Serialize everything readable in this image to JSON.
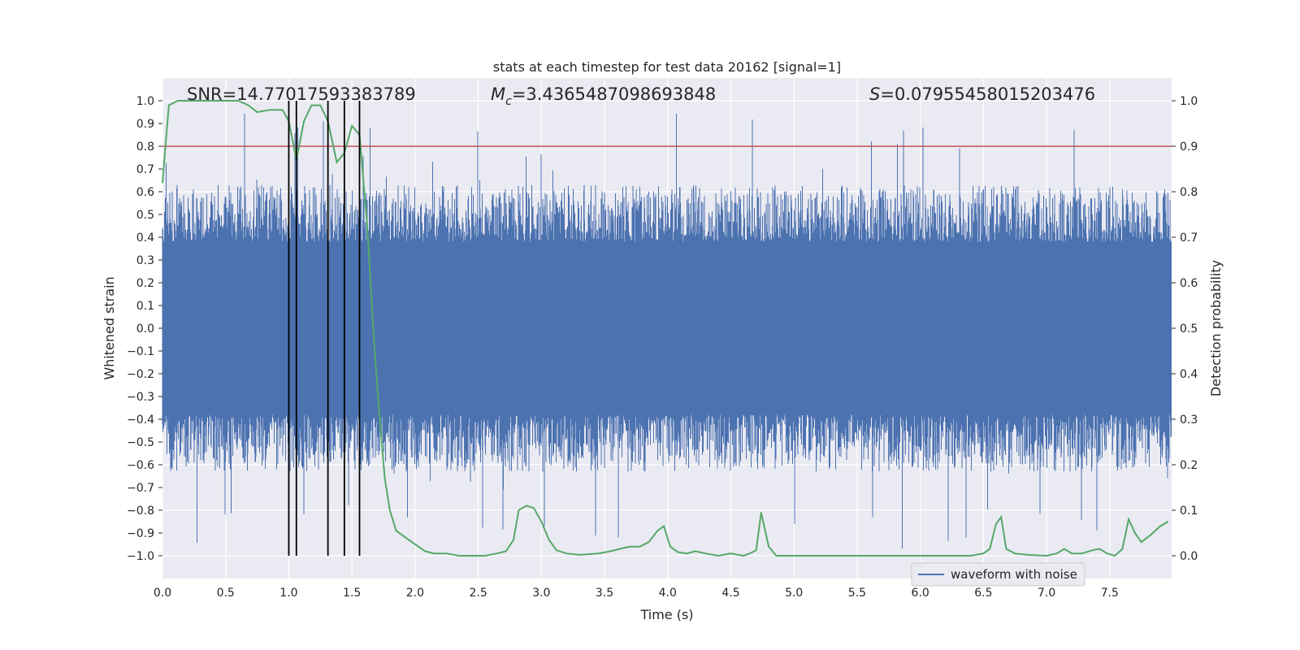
{
  "chart_data": {
    "type": "line",
    "title": "stats at each timestep for test data 20162 [signal=1]",
    "xlabel": "Time (s)",
    "ylabel": "Whitened strain",
    "ylabel_right": "Detection probability",
    "xlim": [
      0.0,
      7.99
    ],
    "ylim": [
      -1.1,
      1.1
    ],
    "ylim_right": [
      -0.05,
      1.05
    ],
    "x_ticks": [
      0.0,
      0.5,
      1.0,
      1.5,
      2.0,
      2.5,
      3.0,
      3.5,
      4.0,
      4.5,
      5.0,
      5.5,
      6.0,
      6.5,
      7.0,
      7.5
    ],
    "x_tick_labels": [
      "0.0",
      "0.5",
      "1.0",
      "1.5",
      "2.0",
      "2.5",
      "3.0",
      "3.5",
      "4.0",
      "4.5",
      "5.0",
      "5.5",
      "6.0",
      "6.5",
      "7.0",
      "7.5"
    ],
    "y_ticks": [
      1.0,
      0.9,
      0.8,
      0.7,
      0.6,
      0.5,
      0.4,
      0.3,
      0.2,
      0.1,
      0.0,
      -0.1,
      -0.2,
      -0.3,
      -0.4,
      -0.5,
      -0.6,
      -0.7,
      -0.8,
      -0.9,
      -1.0
    ],
    "y_tick_labels": [
      "1.0",
      "0.9",
      "0.8",
      "0.7",
      "0.6",
      "0.5",
      "0.4",
      "0.3",
      "0.2",
      "0.1",
      "0.0",
      "−0.1",
      "−0.2",
      "−0.3",
      "−0.4",
      "−0.5",
      "−0.6",
      "−0.7",
      "−0.8",
      "−0.9",
      "−1.0"
    ],
    "y_right_ticks": [
      1.0,
      0.9,
      0.8,
      0.7,
      0.6,
      0.5,
      0.4,
      0.3,
      0.2,
      0.1,
      0.0
    ],
    "y_right_tick_labels": [
      "1.0",
      "0.9",
      "0.8",
      "0.7",
      "0.6",
      "0.5",
      "0.4",
      "0.3",
      "0.2",
      "0.1",
      "0.0"
    ],
    "stats": {
      "snr": "SNR=14.77017593383789",
      "mc_symbol": "M",
      "mc_sub": "c",
      "mc_value": "=3.4365487098693848",
      "s_symbol": "S",
      "s_value": "=0.07955458015203476"
    },
    "threshold_right": 0.9,
    "vertical_lines_x": [
      1.0,
      1.06,
      1.31,
      1.44,
      1.56
    ],
    "vertical_lines_range": [
      -1.0,
      1.0
    ],
    "legend": [
      {
        "label": "waveform with noise",
        "color": "#4c72b0"
      }
    ],
    "legend_position": "lower-right",
    "waveform": {
      "name": "waveform with noise",
      "color": "#4c72b0",
      "core_band": 0.38,
      "typical_peak": 0.55,
      "max_peak": 0.98
    },
    "detection_probability": {
      "name": "detection probability",
      "color": "#55a868",
      "x": [
        0.0,
        0.05,
        0.12,
        0.2,
        0.3,
        0.4,
        0.5,
        0.6,
        0.68,
        0.75,
        0.85,
        0.95,
        1.0,
        1.06,
        1.12,
        1.18,
        1.25,
        1.31,
        1.38,
        1.44,
        1.5,
        1.56,
        1.62,
        1.68,
        1.72,
        1.76,
        1.8,
        1.85,
        1.9,
        1.95,
        2.0,
        2.08,
        2.15,
        2.25,
        2.35,
        2.45,
        2.55,
        2.65,
        2.72,
        2.78,
        2.82,
        2.88,
        2.94,
        3.0,
        3.06,
        3.12,
        3.2,
        3.3,
        3.45,
        3.55,
        3.62,
        3.7,
        3.78,
        3.85,
        3.92,
        3.97,
        4.02,
        4.08,
        4.15,
        4.22,
        4.3,
        4.4,
        4.5,
        4.6,
        4.65,
        4.7,
        4.74,
        4.8,
        4.86,
        4.95,
        5.2,
        5.5,
        5.8,
        6.0,
        6.2,
        6.4,
        6.5,
        6.55,
        6.6,
        6.64,
        6.68,
        6.75,
        6.85,
        7.0,
        7.08,
        7.14,
        7.2,
        7.28,
        7.36,
        7.42,
        7.48,
        7.54,
        7.6,
        7.65,
        7.7,
        7.75,
        7.82,
        7.9,
        7.96
      ],
      "values": [
        0.82,
        0.99,
        1.0,
        1.0,
        1.0,
        1.0,
        1.0,
        1.0,
        0.99,
        0.975,
        0.98,
        0.98,
        0.955,
        0.87,
        0.955,
        0.99,
        0.99,
        0.955,
        0.865,
        0.885,
        0.945,
        0.925,
        0.73,
        0.45,
        0.3,
        0.17,
        0.1,
        0.055,
        0.045,
        0.035,
        0.025,
        0.01,
        0.005,
        0.005,
        0.0,
        0.0,
        0.0,
        0.005,
        0.01,
        0.035,
        0.1,
        0.11,
        0.105,
        0.075,
        0.035,
        0.012,
        0.005,
        0.002,
        0.005,
        0.01,
        0.015,
        0.02,
        0.02,
        0.03,
        0.055,
        0.065,
        0.02,
        0.008,
        0.005,
        0.01,
        0.005,
        0.0,
        0.005,
        0.0,
        0.005,
        0.012,
        0.095,
        0.02,
        0.0,
        0.0,
        0.0,
        0.0,
        0.0,
        0.0,
        0.0,
        0.0,
        0.005,
        0.015,
        0.07,
        0.085,
        0.015,
        0.005,
        0.002,
        0.0,
        0.005,
        0.015,
        0.005,
        0.005,
        0.012,
        0.015,
        0.005,
        0.0,
        0.015,
        0.08,
        0.05,
        0.03,
        0.045,
        0.065,
        0.075
      ]
    },
    "threshold_color": "#c44e52",
    "vline_color": "#000000"
  }
}
